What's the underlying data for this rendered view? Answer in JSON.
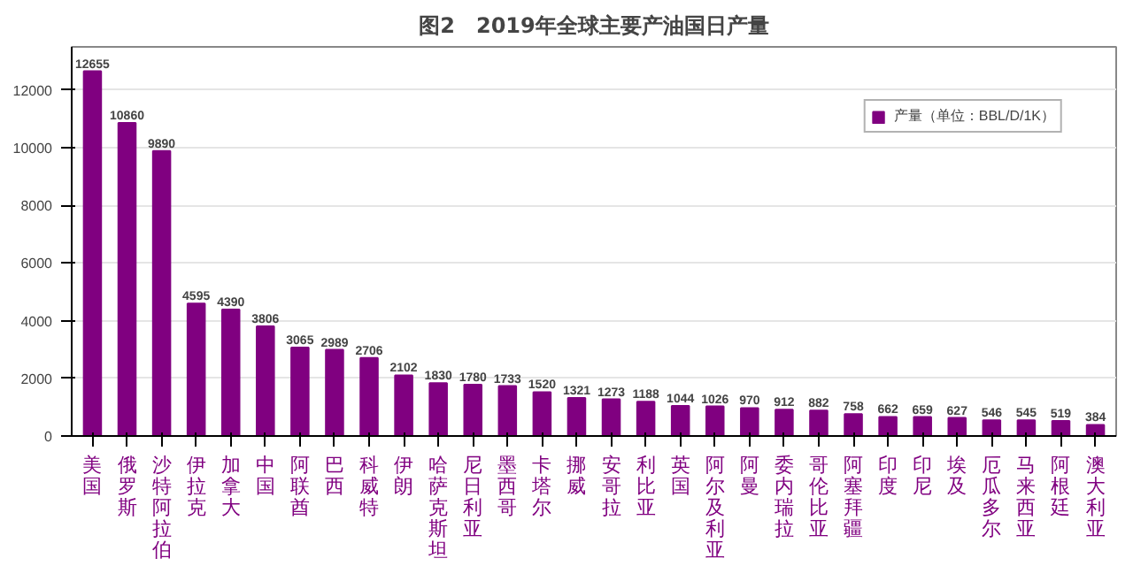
{
  "chart_data": {
    "type": "bar",
    "title": "图2　2019年全球主要产油国日产量",
    "categories": [
      "美国",
      "俄罗斯",
      "沙特阿拉伯",
      "伊拉克",
      "加拿大",
      "中国",
      "阿联酋",
      "巴西",
      "科威特",
      "伊朗",
      "哈萨克斯坦",
      "尼日利亚",
      "墨西哥",
      "卡塔尔",
      "挪威",
      "安哥拉",
      "利比亚",
      "英国",
      "阿尔及利亚",
      "阿曼",
      "委内瑞拉",
      "哥伦比亚",
      "阿塞拜疆",
      "印度",
      "印尼",
      "埃及",
      "厄瓜多尔",
      "马来西亚",
      "阿根廷",
      "澳大利亚"
    ],
    "series": [
      {
        "name": "产量（单位：BBL/D/1K）",
        "color": "#800080",
        "values": [
          12655,
          10860,
          9890,
          4595,
          4390,
          3806,
          3065,
          2989,
          2706,
          2102,
          1830,
          1780,
          1733,
          1520,
          1321,
          1273,
          1188,
          1044,
          1026,
          970,
          912,
          882,
          758,
          662,
          659,
          627,
          546,
          545,
          519,
          384
        ]
      }
    ],
    "ylim": [
      0,
      13500
    ],
    "yticks": [
      0,
      2000,
      4000,
      6000,
      8000,
      10000,
      12000
    ],
    "grid": "y",
    "legend": "top right",
    "data_labels": true
  }
}
